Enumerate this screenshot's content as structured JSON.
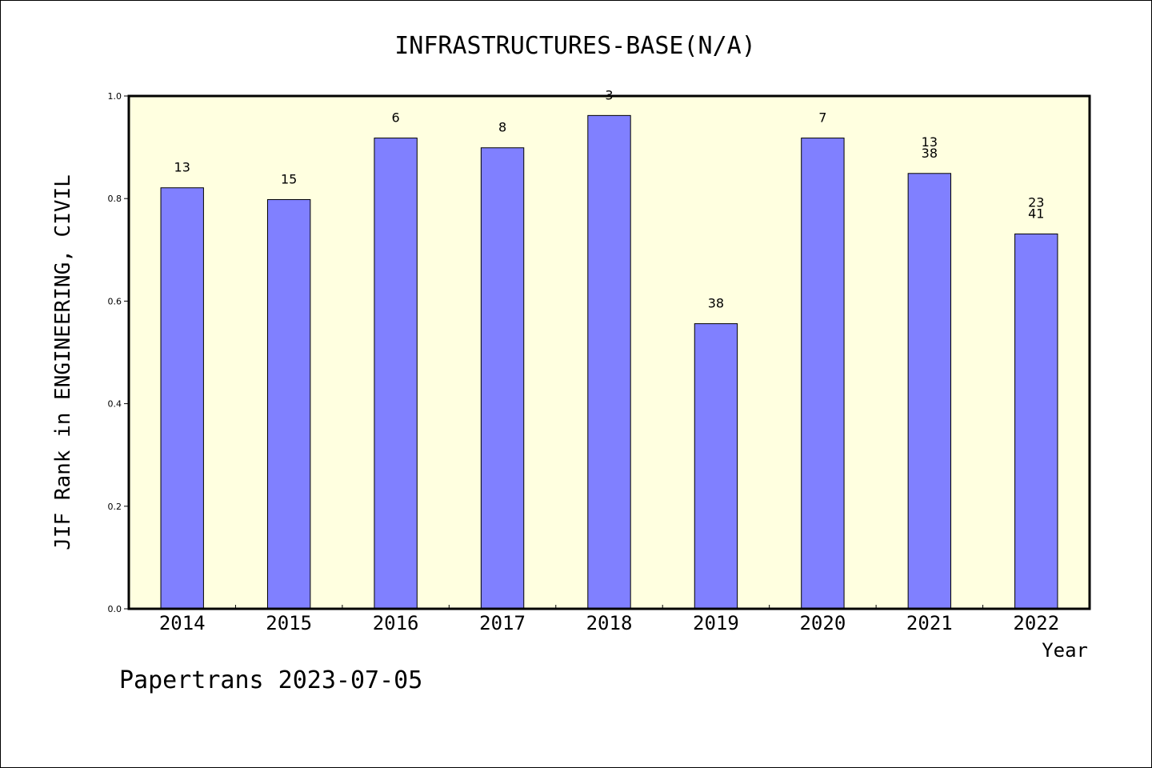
{
  "chart_data": {
    "type": "bar",
    "title": "INFRASTRUCTURES-BASE(N/A)",
    "xlabel": "Year",
    "ylabel": "JIF Rank in ENGINEERING, CIVIL",
    "categories": [
      "2014",
      "2015",
      "2016",
      "2017",
      "2018",
      "2019",
      "2020",
      "2021",
      "2022"
    ],
    "values": [
      0.821,
      0.798,
      0.918,
      0.899,
      0.962,
      0.556,
      0.918,
      0.849,
      0.731
    ],
    "data_labels": [
      [
        "13"
      ],
      [
        "15"
      ],
      [
        "6"
      ],
      [
        "8"
      ],
      [
        "3"
      ],
      [
        "38"
      ],
      [
        "7"
      ],
      [
        "13",
        "38"
      ],
      [
        "23",
        "41"
      ]
    ],
    "ylim": [
      0,
      1.0
    ],
    "yticks": [
      "0.0",
      "0.2",
      "0.4",
      "0.6",
      "0.8",
      "1.0"
    ],
    "grid": false,
    "colors": {
      "bar": "#8080ff",
      "plot_background": "#ffffe0",
      "bar_edge": "#000000"
    }
  },
  "footer": "Papertrans 2023-07-05"
}
